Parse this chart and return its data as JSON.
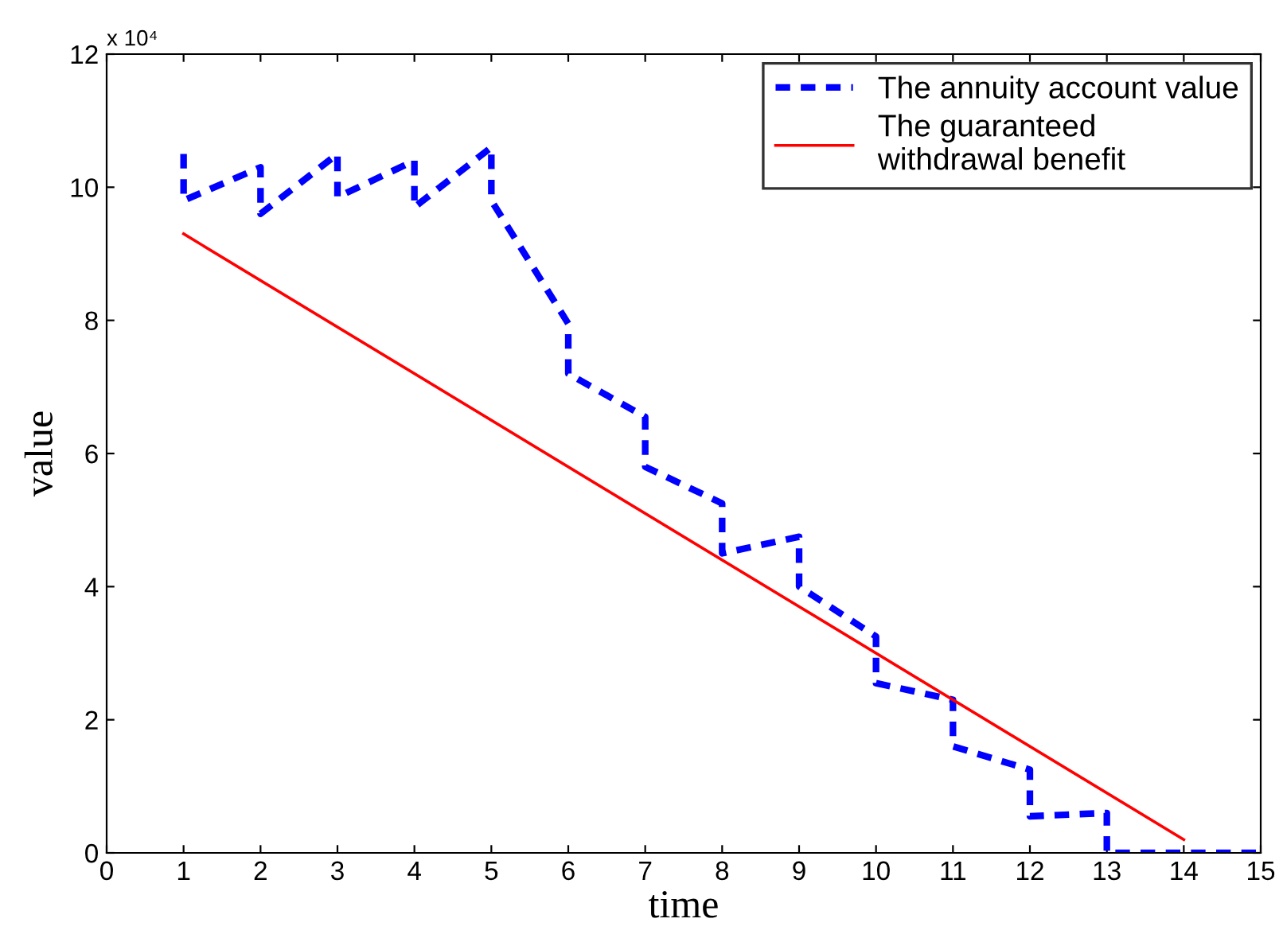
{
  "chart_data": {
    "type": "line",
    "xlabel": "time",
    "ylabel": "value",
    "annotations": [
      "x 10⁴"
    ],
    "xlim": [
      0,
      15
    ],
    "xticks": [
      0,
      1,
      2,
      3,
      4,
      5,
      6,
      7,
      8,
      9,
      10,
      11,
      12,
      13,
      14,
      15
    ],
    "ylim": [
      0,
      12
    ],
    "yticks": [
      0,
      2,
      4,
      6,
      8,
      10,
      12
    ],
    "grid": false,
    "legend": "top right",
    "marker": "none",
    "series": [
      {
        "name": "The annuity account value",
        "color": "#0000ff",
        "line_style": "dashed",
        "x": [
          1,
          1,
          2,
          2,
          3,
          3,
          4,
          4,
          5,
          5,
          6,
          6,
          7,
          7,
          8,
          8,
          9,
          9,
          10,
          10,
          11,
          11,
          12,
          12,
          13,
          13,
          14,
          15
        ],
        "values": [
          10.5,
          9.8,
          10.3,
          9.6,
          10.5,
          9.85,
          10.4,
          9.7,
          10.6,
          9.8,
          7.95,
          7.2,
          6.55,
          5.8,
          5.25,
          4.5,
          4.75,
          4.0,
          3.25,
          2.55,
          2.3,
          1.6,
          1.25,
          0.55,
          0.6,
          0,
          0,
          0
        ]
      },
      {
        "name": "The guaranteed\nwithdrawal benefit",
        "color": "#ff0000",
        "line_style": "solid",
        "x": [
          1,
          14
        ],
        "values": [
          9.3,
          0.2
        ]
      }
    ]
  }
}
